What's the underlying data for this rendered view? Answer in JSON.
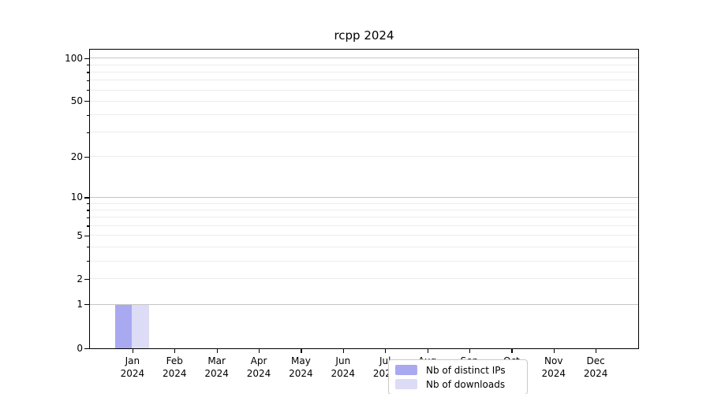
{
  "chart_data": {
    "type": "bar",
    "title": "rcpp 2024",
    "categories": [
      {
        "month": "Jan",
        "year": "2024"
      },
      {
        "month": "Feb",
        "year": "2024"
      },
      {
        "month": "Mar",
        "year": "2024"
      },
      {
        "month": "Apr",
        "year": "2024"
      },
      {
        "month": "May",
        "year": "2024"
      },
      {
        "month": "Jun",
        "year": "2024"
      },
      {
        "month": "Jul",
        "year": "2024"
      },
      {
        "month": "Aug",
        "year": "2024"
      },
      {
        "month": "Sep",
        "year": "2024"
      },
      {
        "month": "Oct",
        "year": "2024"
      },
      {
        "month": "Nov",
        "year": "2024"
      },
      {
        "month": "Dec",
        "year": "2024"
      }
    ],
    "series": [
      {
        "name": "Nb of distinct IPs",
        "color": "#a9a9f1",
        "values": [
          1,
          0,
          0,
          0,
          0,
          0,
          0,
          0,
          0,
          0,
          0,
          0
        ]
      },
      {
        "name": "Nb of downloads",
        "color": "#dcdcf7",
        "values": [
          1,
          0,
          0,
          0,
          0,
          0,
          0,
          0,
          0,
          0,
          0,
          0
        ]
      }
    ],
    "xlabel": "",
    "ylabel": "",
    "yscale": "log1p",
    "ylim": [
      0,
      114
    ],
    "yticks": [
      0,
      1,
      2,
      5,
      10,
      20,
      50,
      100
    ],
    "yticks_minor": [
      3,
      4,
      6,
      7,
      8,
      9,
      30,
      40,
      60,
      70,
      80,
      90
    ],
    "grid": true,
    "grid_emphasis_values": [
      1,
      10,
      100
    ],
    "legend": {
      "position": "lower center inside",
      "items": [
        {
          "label": "Nb of distinct IPs",
          "color": "#a9a9f1"
        },
        {
          "label": "Nb of downloads",
          "color": "#dcdcf7"
        }
      ]
    },
    "colors": {
      "axis": "#000000",
      "grid_major": "#c4c4c4",
      "grid_minor": "#ececec",
      "background": "#ffffff"
    }
  }
}
